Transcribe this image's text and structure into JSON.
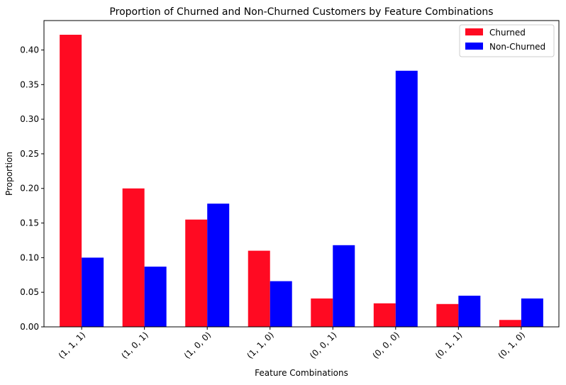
{
  "chart_data": {
    "type": "bar",
    "title": "Proportion of Churned and Non-Churned Customers by Feature Combinations",
    "xlabel": "Feature Combinations",
    "ylabel": "Proportion",
    "categories": [
      "(1, 1, 1)",
      "(1, 0, 1)",
      "(1, 0, 0)",
      "(1, 1, 0)",
      "(0, 0, 1)",
      "(0, 0, 0)",
      "(0, 1, 1)",
      "(0, 1, 0)"
    ],
    "series": [
      {
        "name": "Churned",
        "color": "#ff0a22",
        "values": [
          0.422,
          0.2,
          0.155,
          0.11,
          0.041,
          0.034,
          0.033,
          0.01
        ]
      },
      {
        "name": "Non-Churned",
        "color": "#0000ff",
        "values": [
          0.1,
          0.087,
          0.178,
          0.066,
          0.118,
          0.37,
          0.045,
          0.041
        ]
      }
    ],
    "ylim": [
      0,
      0.4425
    ],
    "yticks": [
      0.0,
      0.05,
      0.1,
      0.15,
      0.2,
      0.25,
      0.3,
      0.35,
      0.4
    ],
    "ytick_labels": [
      "0.00",
      "0.05",
      "0.10",
      "0.15",
      "0.20",
      "0.25",
      "0.30",
      "0.35",
      "0.40"
    ],
    "grid": false,
    "legend_position": "top-right"
  }
}
